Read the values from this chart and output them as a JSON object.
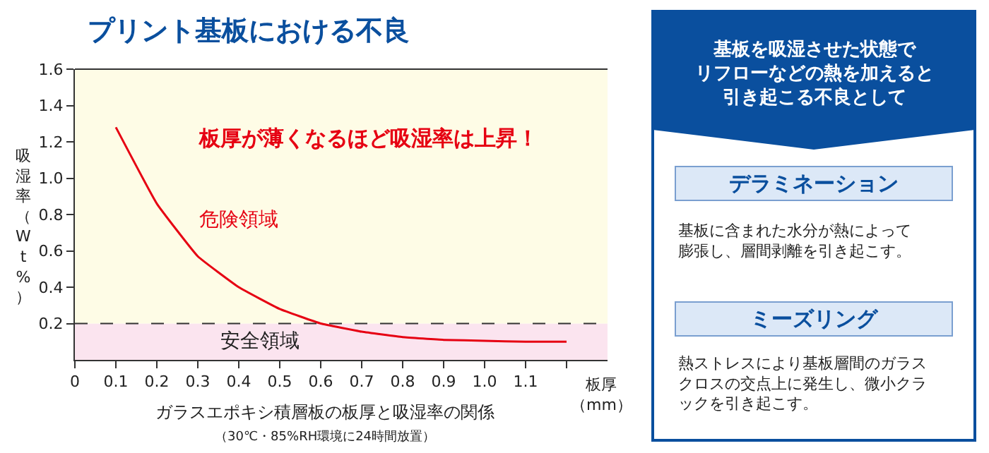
{
  "chart_data": [
    {
      "type": "line",
      "title": "プリント基板における不良",
      "xlabel": "板厚（mm）",
      "ylabel": "吸湿率（Wt%）",
      "x": [
        0.1,
        0.2,
        0.3,
        0.4,
        0.5,
        0.6,
        0.7,
        0.8,
        0.9,
        1.0,
        1.1,
        1.2
      ],
      "series": [
        {
          "color": "#e60012",
          "values": [
            1.28,
            0.86,
            0.57,
            0.4,
            0.28,
            0.2,
            0.155,
            0.125,
            0.11,
            0.105,
            0.1,
            0.1
          ]
        }
      ],
      "xlim": [
        0,
        1.3
      ],
      "ylim": [
        0,
        1.6
      ],
      "xticks": [
        0,
        0.1,
        0.2,
        0.3,
        0.4,
        0.5,
        0.6,
        0.7,
        0.8,
        0.9,
        {
          "value": 1.0,
          "label": "1.0"
        },
        1.1,
        {
          "value": 1.2,
          "label": null
        }
      ],
      "yticks": [
        0.2,
        0.4,
        0.6,
        0.8,
        {
          "value": 1.0,
          "label": "1.0"
        },
        1.2,
        1.4,
        1.6
      ],
      "grid": false,
      "marker": "none",
      "line_style": "solid",
      "ref_lines": [
        {
          "axis": "y",
          "value": 0.2,
          "color": "#333333",
          "line_style": "dashed"
        }
      ],
      "bands": [
        {
          "axis": "y",
          "from": 0,
          "to": 0.2,
          "label": "安全領域",
          "color": "#fbe4ef"
        },
        {
          "axis": "y",
          "from": 0.2,
          "to": 1.6,
          "label": "危険領域",
          "color": "#fefce6"
        }
      ],
      "annotations": [
        "板厚が薄くなるほど吸湿率は上昇！",
        "ガラスエポキシ積層板の板厚と吸湿率の関係",
        "（30℃・85%RH環境に24時間放置）"
      ]
    },
    {
      "type": "other",
      "title": "基板を吸湿させた状態でリフローなどの熱を加えると引き起こる不良として",
      "annotations": [
        "デラミネーション",
        "基板に含まれた水分が熱によって膨張し、層間剥離を引き起こす。",
        "ミーズリング",
        "熱ストレスにより基板層間のガラスクロスの交点上に発生し、微小クラックを引き起こす。"
      ]
    }
  ]
}
